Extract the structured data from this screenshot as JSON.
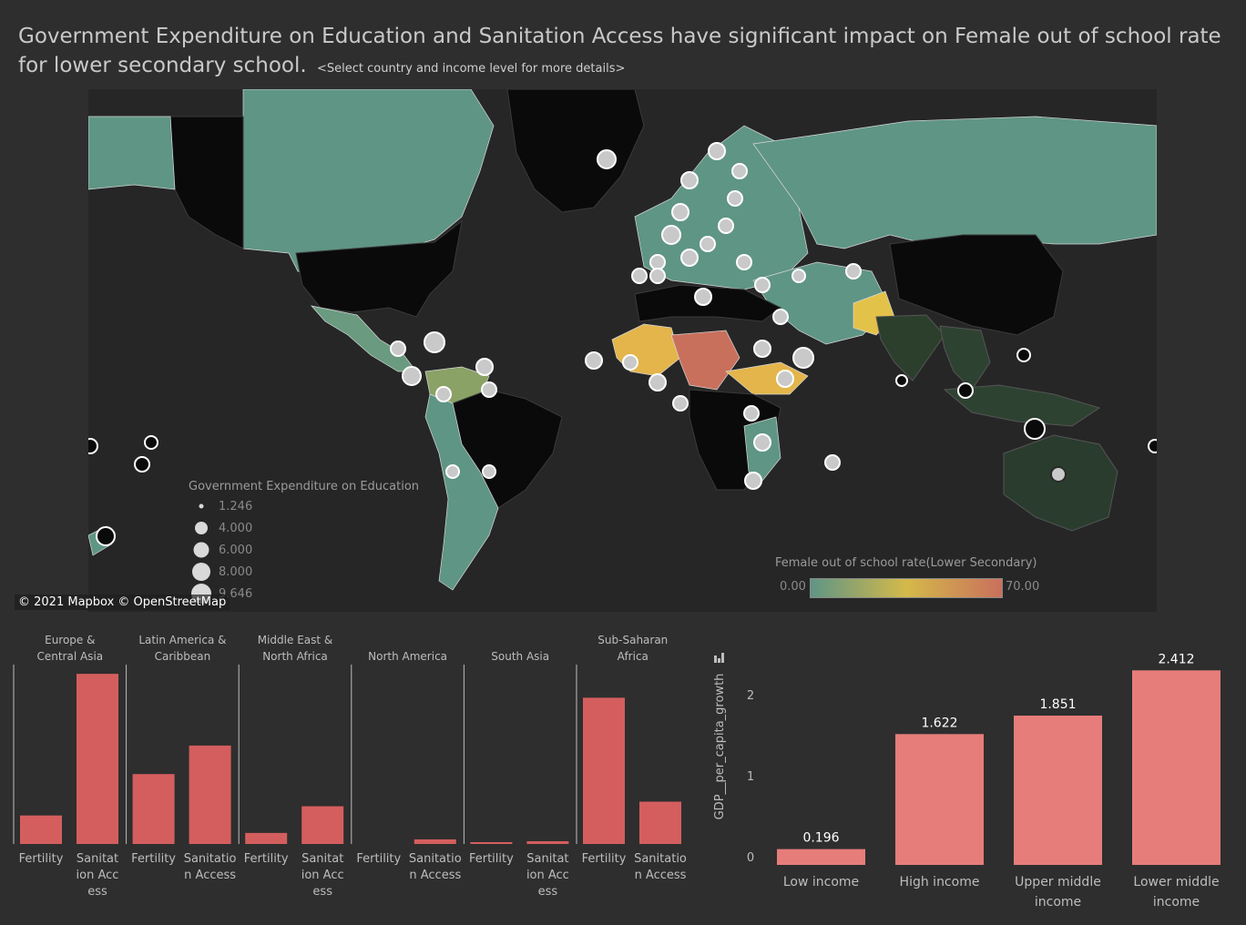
{
  "title": "Government Expenditure on Education and Sanitation Access have significant impact on Female out of school rate for lower secondary school.",
  "subtitle": "<Select country and income level for more details>",
  "map": {
    "attribution": "© 2021 Mapbox  © OpenStreetMap",
    "size_legend": {
      "title": "Government Expenditure on Education",
      "values": [
        "1.246",
        "4.000",
        "6.000",
        "8.000",
        "9.646"
      ]
    },
    "color_legend": {
      "title": "Female out of school rate(Lower Secondary)",
      "min": "0.00",
      "max": "70.00",
      "colors": [
        "#5f9585",
        "#d4b94a",
        "#c9705c"
      ]
    }
  },
  "chart_data": [
    {
      "type": "bar",
      "panels": [
        {
          "name": "Europe & Central Asia",
          "fertility": 0.31,
          "sanitation": 1.85
        },
        {
          "name": "Latin America & Caribbean",
          "fertility": 0.76,
          "sanitation": 1.07
        },
        {
          "name": "Middle East & North Africa",
          "fertility": 0.12,
          "sanitation": 0.41
        },
        {
          "name": "North America",
          "fertility": 0.0,
          "sanitation": 0.05
        },
        {
          "name": "South Asia",
          "fertility": 0.02,
          "sanitation": 0.03
        },
        {
          "name": "Sub-Saharan Africa",
          "fertility": 1.59,
          "sanitation": 0.46
        }
      ],
      "categories": [
        "Fertility",
        "Sanitation Access"
      ],
      "color": "#d45e5e"
    },
    {
      "type": "bar",
      "ylabel": "GDP__per_capita_growth",
      "categories": [
        "Low income",
        "High income",
        "Upper middle income",
        "Lower middle income"
      ],
      "values": [
        0.196,
        1.622,
        1.851,
        2.412
      ],
      "value_labels": [
        "0.196",
        "1.622",
        "1.851",
        "2.412"
      ],
      "ylim": [
        0,
        2.5
      ],
      "yticks": [
        "0",
        "1",
        "2"
      ],
      "color": "#e67d7a"
    }
  ]
}
